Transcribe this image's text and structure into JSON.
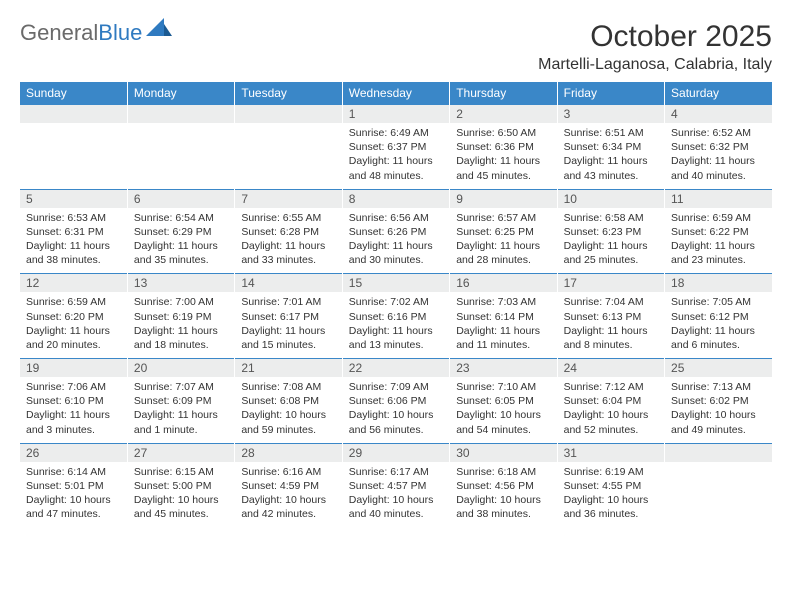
{
  "logo": {
    "text1": "General",
    "text2": "Blue"
  },
  "title": "October 2025",
  "location": "Martelli-Laganosa, Calabria, Italy",
  "colors": {
    "header_bg": "#3a87c8",
    "header_text": "#ffffff",
    "daynum_bg": "#eceded",
    "border": "#3a87c8",
    "logo_gray": "#6a6a6a",
    "logo_blue": "#2f7ac0"
  },
  "day_headers": [
    "Sunday",
    "Monday",
    "Tuesday",
    "Wednesday",
    "Thursday",
    "Friday",
    "Saturday"
  ],
  "weeks": [
    [
      {
        "empty": true
      },
      {
        "empty": true
      },
      {
        "empty": true
      },
      {
        "day": "1",
        "sunrise": "Sunrise: 6:49 AM",
        "sunset": "Sunset: 6:37 PM",
        "daylight": "Daylight: 11 hours and 48 minutes."
      },
      {
        "day": "2",
        "sunrise": "Sunrise: 6:50 AM",
        "sunset": "Sunset: 6:36 PM",
        "daylight": "Daylight: 11 hours and 45 minutes."
      },
      {
        "day": "3",
        "sunrise": "Sunrise: 6:51 AM",
        "sunset": "Sunset: 6:34 PM",
        "daylight": "Daylight: 11 hours and 43 minutes."
      },
      {
        "day": "4",
        "sunrise": "Sunrise: 6:52 AM",
        "sunset": "Sunset: 6:32 PM",
        "daylight": "Daylight: 11 hours and 40 minutes."
      }
    ],
    [
      {
        "day": "5",
        "sunrise": "Sunrise: 6:53 AM",
        "sunset": "Sunset: 6:31 PM",
        "daylight": "Daylight: 11 hours and 38 minutes."
      },
      {
        "day": "6",
        "sunrise": "Sunrise: 6:54 AM",
        "sunset": "Sunset: 6:29 PM",
        "daylight": "Daylight: 11 hours and 35 minutes."
      },
      {
        "day": "7",
        "sunrise": "Sunrise: 6:55 AM",
        "sunset": "Sunset: 6:28 PM",
        "daylight": "Daylight: 11 hours and 33 minutes."
      },
      {
        "day": "8",
        "sunrise": "Sunrise: 6:56 AM",
        "sunset": "Sunset: 6:26 PM",
        "daylight": "Daylight: 11 hours and 30 minutes."
      },
      {
        "day": "9",
        "sunrise": "Sunrise: 6:57 AM",
        "sunset": "Sunset: 6:25 PM",
        "daylight": "Daylight: 11 hours and 28 minutes."
      },
      {
        "day": "10",
        "sunrise": "Sunrise: 6:58 AM",
        "sunset": "Sunset: 6:23 PM",
        "daylight": "Daylight: 11 hours and 25 minutes."
      },
      {
        "day": "11",
        "sunrise": "Sunrise: 6:59 AM",
        "sunset": "Sunset: 6:22 PM",
        "daylight": "Daylight: 11 hours and 23 minutes."
      }
    ],
    [
      {
        "day": "12",
        "sunrise": "Sunrise: 6:59 AM",
        "sunset": "Sunset: 6:20 PM",
        "daylight": "Daylight: 11 hours and 20 minutes."
      },
      {
        "day": "13",
        "sunrise": "Sunrise: 7:00 AM",
        "sunset": "Sunset: 6:19 PM",
        "daylight": "Daylight: 11 hours and 18 minutes."
      },
      {
        "day": "14",
        "sunrise": "Sunrise: 7:01 AM",
        "sunset": "Sunset: 6:17 PM",
        "daylight": "Daylight: 11 hours and 15 minutes."
      },
      {
        "day": "15",
        "sunrise": "Sunrise: 7:02 AM",
        "sunset": "Sunset: 6:16 PM",
        "daylight": "Daylight: 11 hours and 13 minutes."
      },
      {
        "day": "16",
        "sunrise": "Sunrise: 7:03 AM",
        "sunset": "Sunset: 6:14 PM",
        "daylight": "Daylight: 11 hours and 11 minutes."
      },
      {
        "day": "17",
        "sunrise": "Sunrise: 7:04 AM",
        "sunset": "Sunset: 6:13 PM",
        "daylight": "Daylight: 11 hours and 8 minutes."
      },
      {
        "day": "18",
        "sunrise": "Sunrise: 7:05 AM",
        "sunset": "Sunset: 6:12 PM",
        "daylight": "Daylight: 11 hours and 6 minutes."
      }
    ],
    [
      {
        "day": "19",
        "sunrise": "Sunrise: 7:06 AM",
        "sunset": "Sunset: 6:10 PM",
        "daylight": "Daylight: 11 hours and 3 minutes."
      },
      {
        "day": "20",
        "sunrise": "Sunrise: 7:07 AM",
        "sunset": "Sunset: 6:09 PM",
        "daylight": "Daylight: 11 hours and 1 minute."
      },
      {
        "day": "21",
        "sunrise": "Sunrise: 7:08 AM",
        "sunset": "Sunset: 6:08 PM",
        "daylight": "Daylight: 10 hours and 59 minutes."
      },
      {
        "day": "22",
        "sunrise": "Sunrise: 7:09 AM",
        "sunset": "Sunset: 6:06 PM",
        "daylight": "Daylight: 10 hours and 56 minutes."
      },
      {
        "day": "23",
        "sunrise": "Sunrise: 7:10 AM",
        "sunset": "Sunset: 6:05 PM",
        "daylight": "Daylight: 10 hours and 54 minutes."
      },
      {
        "day": "24",
        "sunrise": "Sunrise: 7:12 AM",
        "sunset": "Sunset: 6:04 PM",
        "daylight": "Daylight: 10 hours and 52 minutes."
      },
      {
        "day": "25",
        "sunrise": "Sunrise: 7:13 AM",
        "sunset": "Sunset: 6:02 PM",
        "daylight": "Daylight: 10 hours and 49 minutes."
      }
    ],
    [
      {
        "day": "26",
        "sunrise": "Sunrise: 6:14 AM",
        "sunset": "Sunset: 5:01 PM",
        "daylight": "Daylight: 10 hours and 47 minutes."
      },
      {
        "day": "27",
        "sunrise": "Sunrise: 6:15 AM",
        "sunset": "Sunset: 5:00 PM",
        "daylight": "Daylight: 10 hours and 45 minutes."
      },
      {
        "day": "28",
        "sunrise": "Sunrise: 6:16 AM",
        "sunset": "Sunset: 4:59 PM",
        "daylight": "Daylight: 10 hours and 42 minutes."
      },
      {
        "day": "29",
        "sunrise": "Sunrise: 6:17 AM",
        "sunset": "Sunset: 4:57 PM",
        "daylight": "Daylight: 10 hours and 40 minutes."
      },
      {
        "day": "30",
        "sunrise": "Sunrise: 6:18 AM",
        "sunset": "Sunset: 4:56 PM",
        "daylight": "Daylight: 10 hours and 38 minutes."
      },
      {
        "day": "31",
        "sunrise": "Sunrise: 6:19 AM",
        "sunset": "Sunset: 4:55 PM",
        "daylight": "Daylight: 10 hours and 36 minutes."
      },
      {
        "empty": true
      }
    ]
  ]
}
